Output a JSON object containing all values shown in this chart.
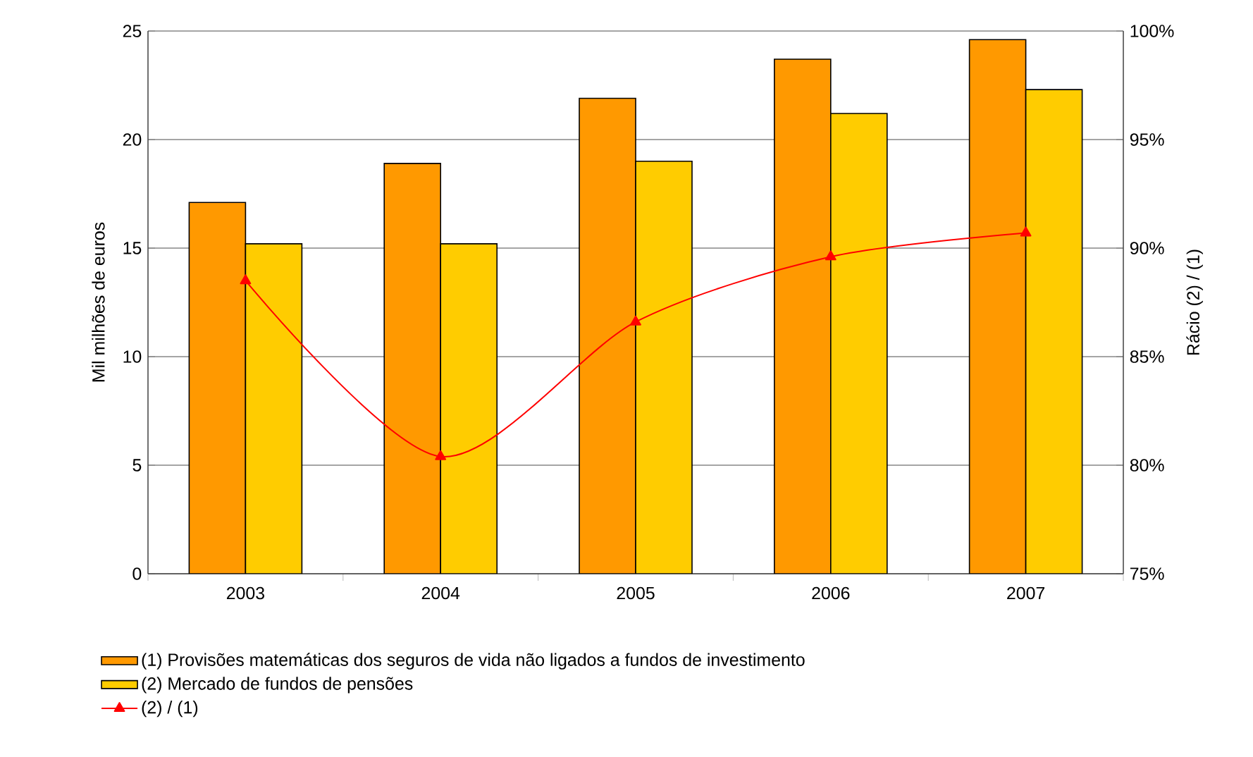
{
  "chart_data": {
    "type": "bar",
    "xlabel": null,
    "ylabel": "Mil milhões de euros",
    "y2label": "Rácio (2) / (1)",
    "categories": [
      "2003",
      "2004",
      "2005",
      "2006",
      "2007"
    ],
    "series": [
      {
        "name": "(1) Provisões matemáticas dos seguros de vida não ligados a fundos de investimento",
        "color": "#ff9900",
        "values": [
          17.1,
          18.9,
          21.9,
          23.7,
          24.6
        ]
      },
      {
        "name": "(2) Mercado de fundos de pensões",
        "color": "#ffcc00",
        "values": [
          15.2,
          15.2,
          19.0,
          21.2,
          22.3
        ]
      },
      {
        "name": "(2) / (1)",
        "type": "line",
        "axis": "y2",
        "color": "#ff0000",
        "marker": "triangle",
        "values": [
          88.5,
          80.4,
          86.6,
          89.6,
          90.7
        ]
      }
    ],
    "ylim": [
      0,
      25
    ],
    "yticks": [
      0,
      5,
      10,
      15,
      20,
      25
    ],
    "y2lim": [
      75,
      100
    ],
    "y2ticks": [
      {
        "value": 75,
        "label": "75%"
      },
      {
        "value": 80,
        "label": "80%"
      },
      {
        "value": 85,
        "label": "85%"
      },
      {
        "value": 90,
        "label": "90%"
      },
      {
        "value": 95,
        "label": "95%"
      },
      {
        "value": 100,
        "label": "100%"
      }
    ],
    "grid": "y",
    "legend": "bottom"
  }
}
